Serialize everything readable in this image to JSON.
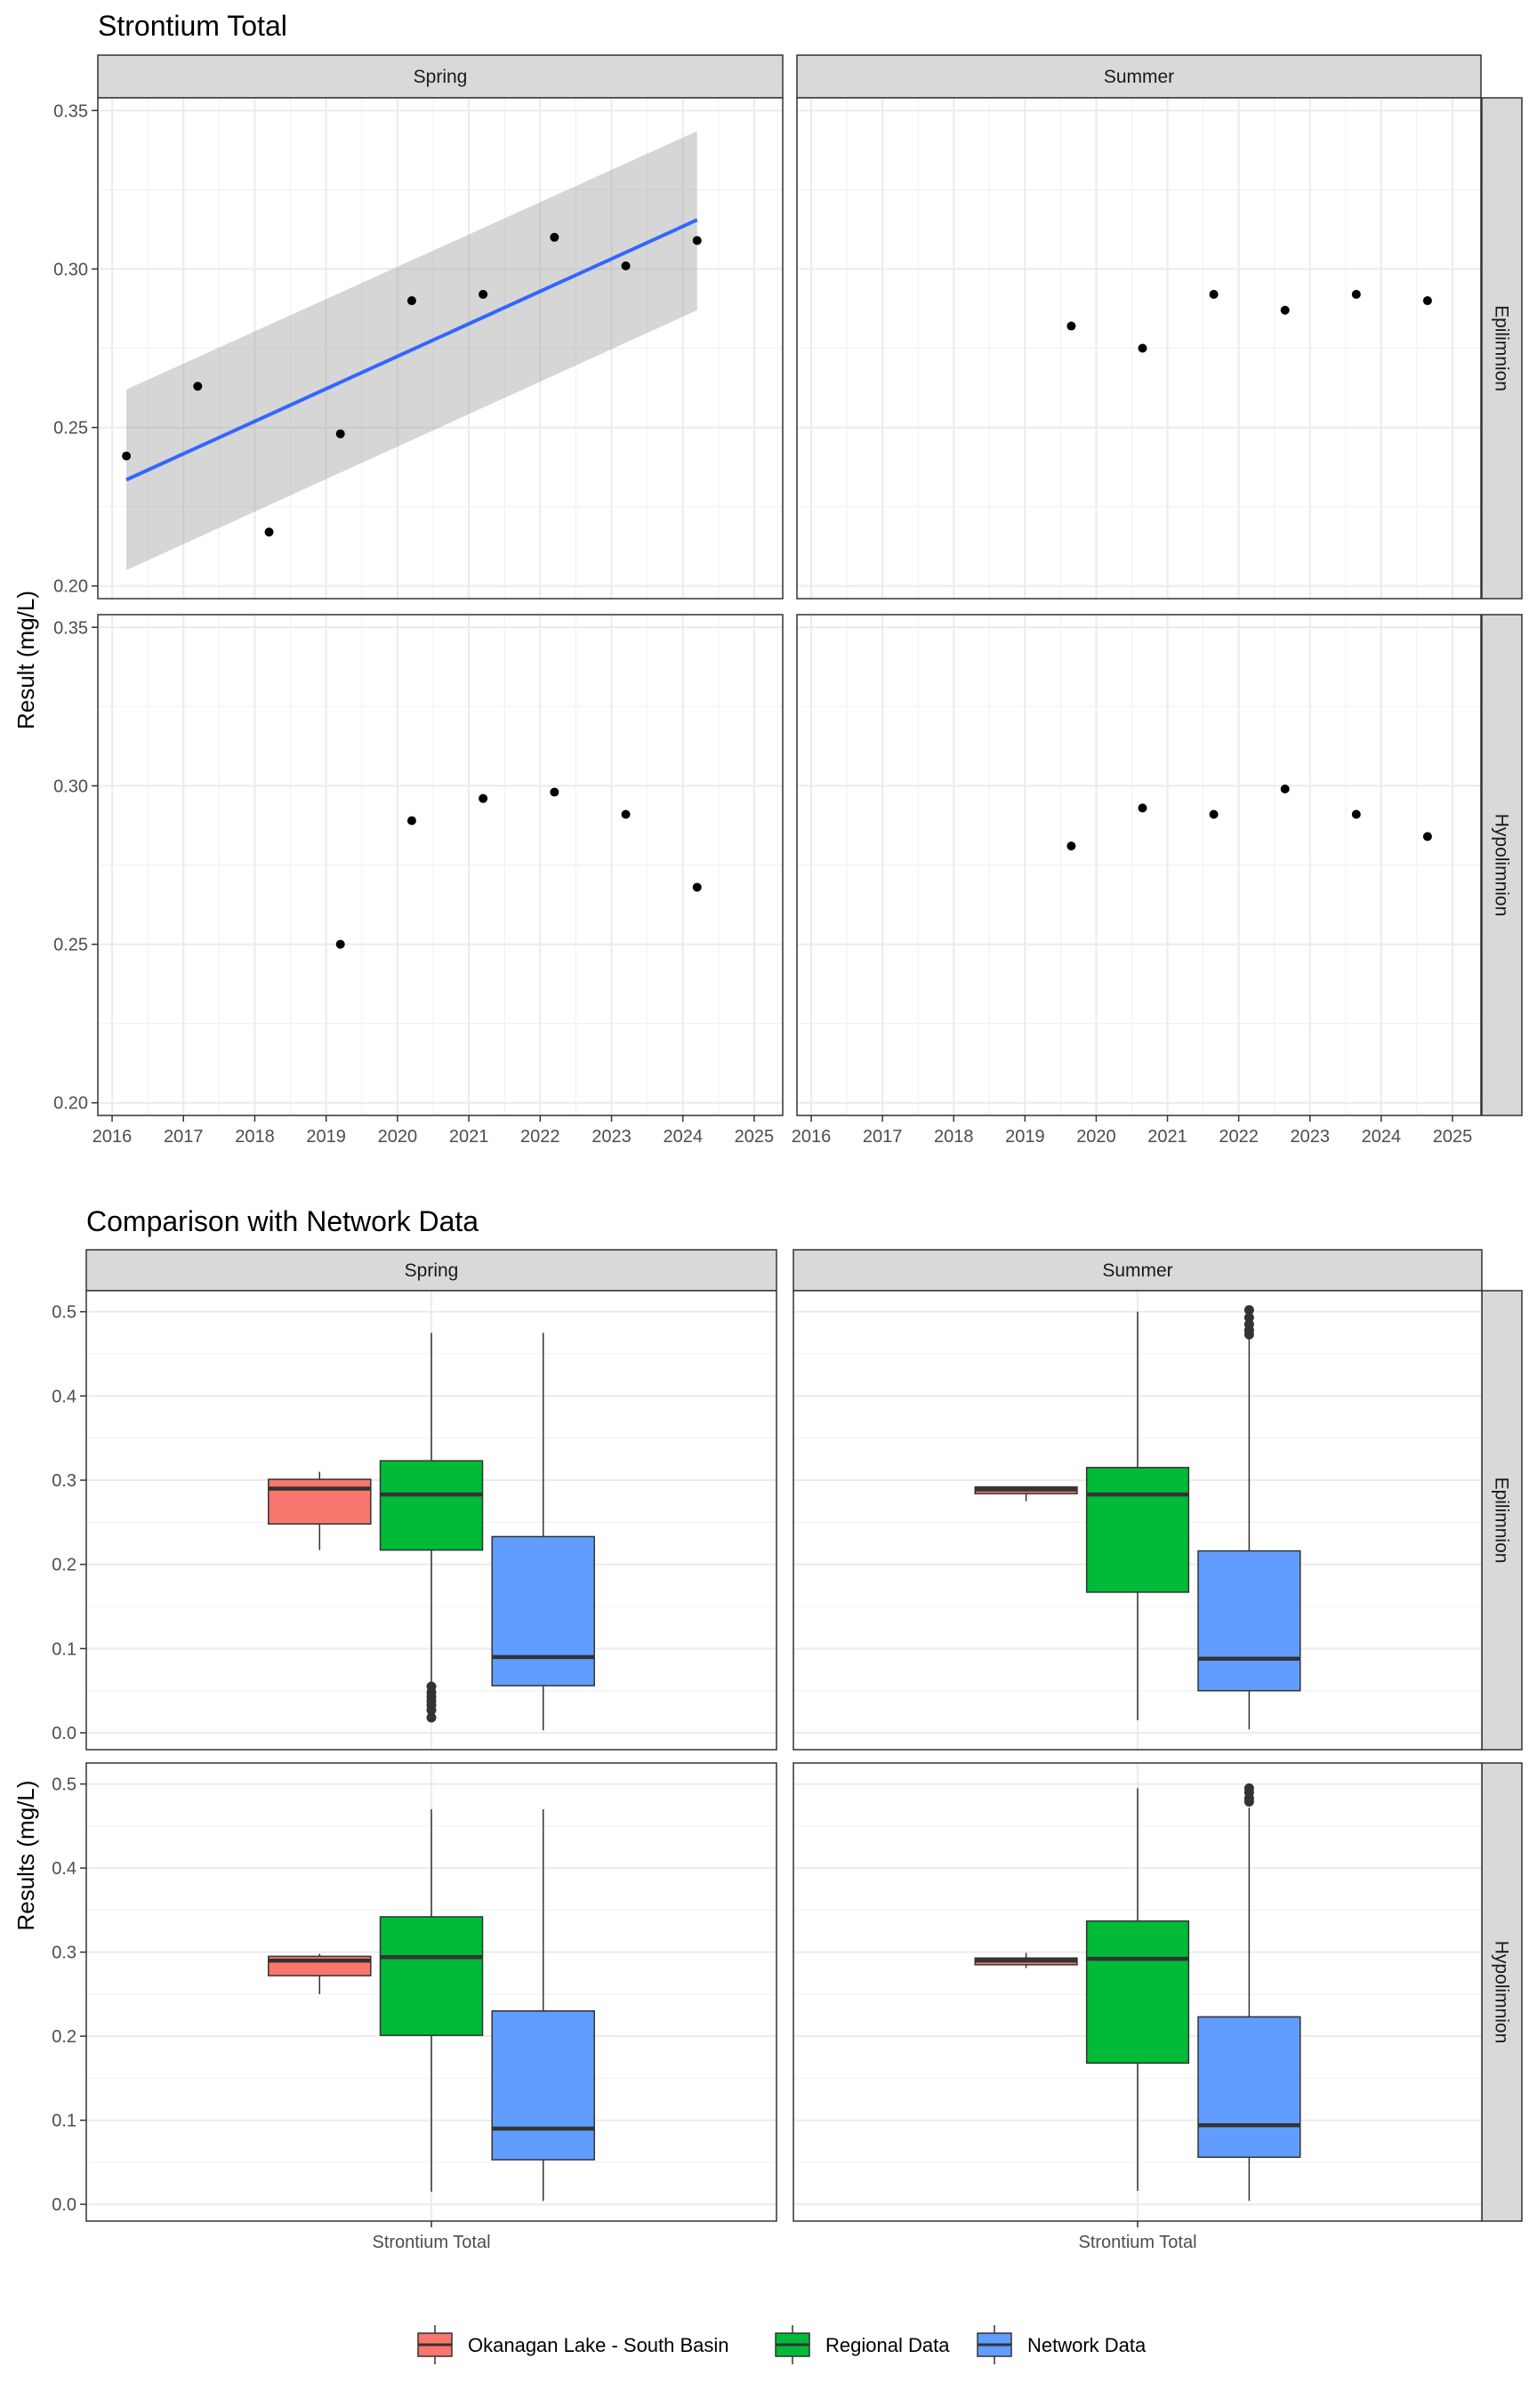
{
  "legend": {
    "items": [
      {
        "label": "Okanagan Lake - South Basin",
        "color": "#F8766D"
      },
      {
        "label": "Regional Data",
        "color": "#00BA38"
      },
      {
        "label": "Network Data",
        "color": "#619CFF"
      }
    ]
  },
  "chart_data": [
    {
      "type": "scatter",
      "title": "Strontium Total",
      "ylabel": "Result (mg/L)",
      "xlabel": "",
      "facet_cols": [
        "Spring",
        "Summer"
      ],
      "facet_rows": [
        "Epilimnion",
        "Hypolimnion"
      ],
      "xlim": [
        2015.8,
        2025.4
      ],
      "ylim": [
        0.196,
        0.354
      ],
      "x_ticks": [
        2016,
        2017,
        2018,
        2019,
        2020,
        2021,
        2022,
        2023,
        2024,
        2025
      ],
      "y_ticks": [
        "0.20",
        "0.25",
        "0.30",
        "0.35"
      ],
      "grid": true,
      "point_color": "#000000",
      "trend_color": "#3366FF",
      "band_color": "#999999",
      "panels": [
        {
          "col": "Spring",
          "row": "Epilimnion",
          "points": [
            [
              2016.2,
              0.241
            ],
            [
              2017.2,
              0.263
            ],
            [
              2018.2,
              0.217
            ],
            [
              2019.2,
              0.248
            ],
            [
              2020.2,
              0.29
            ],
            [
              2021.2,
              0.292
            ],
            [
              2022.2,
              0.31
            ],
            [
              2023.2,
              0.301
            ],
            [
              2024.2,
              0.309
            ]
          ],
          "trend": {
            "x": [
              2016.2,
              2024.2
            ],
            "y": [
              0.2335,
              0.3155
            ],
            "ci_lower": [
              0.205,
              0.287
            ],
            "ci_upper": [
              0.262,
              0.3435
            ]
          }
        },
        {
          "col": "Summer",
          "row": "Epilimnion",
          "points": [
            [
              2019.65,
              0.282
            ],
            [
              2020.65,
              0.275
            ],
            [
              2021.65,
              0.292
            ],
            [
              2022.65,
              0.287
            ],
            [
              2023.65,
              0.292
            ],
            [
              2024.65,
              0.29
            ]
          ]
        },
        {
          "col": "Spring",
          "row": "Hypolimnion",
          "points": [
            [
              2019.2,
              0.25
            ],
            [
              2020.2,
              0.289
            ],
            [
              2021.2,
              0.296
            ],
            [
              2022.2,
              0.298
            ],
            [
              2023.2,
              0.291
            ],
            [
              2024.2,
              0.268
            ]
          ]
        },
        {
          "col": "Summer",
          "row": "Hypolimnion",
          "points": [
            [
              2019.65,
              0.281
            ],
            [
              2020.65,
              0.293
            ],
            [
              2021.65,
              0.291
            ],
            [
              2022.65,
              0.299
            ],
            [
              2023.65,
              0.291
            ],
            [
              2024.65,
              0.284
            ]
          ]
        }
      ]
    },
    {
      "type": "boxplot",
      "title": "Comparison with Network Data",
      "ylabel": "Results (mg/L)",
      "categories": [
        "Strontium Total"
      ],
      "facet_cols": [
        "Spring",
        "Summer"
      ],
      "facet_rows": [
        "Epilimnion",
        "Hypolimnion"
      ],
      "ylim": [
        -0.02,
        0.525
      ],
      "y_ticks": [
        "0.0",
        "0.1",
        "0.2",
        "0.3",
        "0.4",
        "0.5"
      ],
      "grid": true,
      "legend_position": "bottom",
      "series_names": [
        "Okanagan Lake - South Basin",
        "Regional Data",
        "Network Data"
      ],
      "panels": [
        {
          "col": "Spring",
          "row": "Epilimnion",
          "boxes": [
            {
              "series": "Okanagan Lake - South Basin",
              "min": 0.217,
              "q1": 0.248,
              "median": 0.29,
              "q3": 0.301,
              "max": 0.31,
              "outliers": []
            },
            {
              "series": "Regional Data",
              "min": 0.06,
              "q1": 0.217,
              "median": 0.283,
              "q3": 0.323,
              "max": 0.475,
              "outliers": [
                0.055,
                0.048,
                0.043,
                0.038,
                0.033,
                0.027,
                0.018
              ]
            },
            {
              "series": "Network Data",
              "min": 0.003,
              "q1": 0.056,
              "median": 0.09,
              "q3": 0.233,
              "max": 0.475,
              "outliers": []
            }
          ]
        },
        {
          "col": "Summer",
          "row": "Epilimnion",
          "boxes": [
            {
              "series": "Okanagan Lake - South Basin",
              "min": 0.275,
              "q1": 0.284,
              "median": 0.289,
              "q3": 0.292,
              "max": 0.292,
              "outliers": []
            },
            {
              "series": "Regional Data",
              "min": 0.015,
              "q1": 0.167,
              "median": 0.283,
              "q3": 0.315,
              "max": 0.5,
              "outliers": []
            },
            {
              "series": "Network Data",
              "min": 0.004,
              "q1": 0.05,
              "median": 0.088,
              "q3": 0.216,
              "max": 0.468,
              "outliers": [
                0.502,
                0.493,
                0.485,
                0.478,
                0.473
              ]
            }
          ]
        },
        {
          "col": "Spring",
          "row": "Hypolimnion",
          "boxes": [
            {
              "series": "Okanagan Lake - South Basin",
              "min": 0.25,
              "q1": 0.272,
              "median": 0.29,
              "q3": 0.295,
              "max": 0.298,
              "outliers": []
            },
            {
              "series": "Regional Data",
              "min": 0.015,
              "q1": 0.201,
              "median": 0.294,
              "q3": 0.342,
              "max": 0.47,
              "outliers": []
            },
            {
              "series": "Network Data",
              "min": 0.004,
              "q1": 0.053,
              "median": 0.09,
              "q3": 0.23,
              "max": 0.47,
              "outliers": []
            }
          ]
        },
        {
          "col": "Summer",
          "row": "Hypolimnion",
          "boxes": [
            {
              "series": "Okanagan Lake - South Basin",
              "min": 0.281,
              "q1": 0.285,
              "median": 0.29,
              "q3": 0.293,
              "max": 0.299,
              "outliers": []
            },
            {
              "series": "Regional Data",
              "min": 0.016,
              "q1": 0.168,
              "median": 0.292,
              "q3": 0.337,
              "max": 0.495,
              "outliers": []
            },
            {
              "series": "Network Data",
              "min": 0.004,
              "q1": 0.056,
              "median": 0.094,
              "q3": 0.223,
              "max": 0.472,
              "outliers": [
                0.495,
                0.49,
                0.483,
                0.479
              ]
            }
          ]
        }
      ]
    }
  ]
}
